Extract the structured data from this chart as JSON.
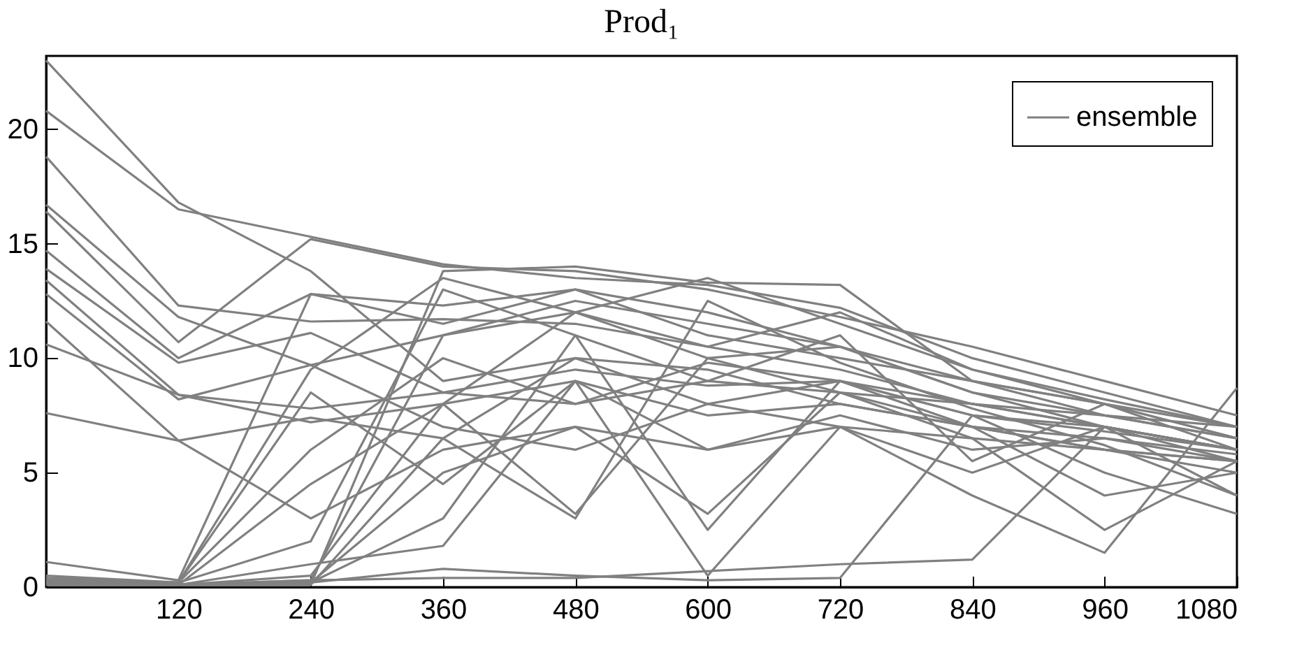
{
  "chart_data": {
    "type": "line",
    "title": "Prod₁",
    "x": [
      0,
      120,
      240,
      360,
      480,
      600,
      720,
      840,
      960,
      1080
    ],
    "xlim": [
      0,
      1080
    ],
    "xticks": [
      120,
      240,
      360,
      480,
      600,
      720,
      840,
      960,
      1080
    ],
    "ylim": [
      0,
      23.2
    ],
    "yticks": [
      0,
      5,
      10,
      15,
      20
    ],
    "grid": false,
    "legend": "top right",
    "line_style": "solid",
    "marker": "none",
    "series": [
      {
        "name": "ensemble",
        "color": "#808080",
        "values": [
          23.0,
          16.8,
          13.8,
          9,
          10,
          8,
          9,
          8,
          7,
          6
        ]
      },
      {
        "color": "#808080",
        "values": [
          20.8,
          16.5,
          15.3,
          14.1,
          13.5,
          13.2,
          12.2,
          10,
          8.5,
          7
        ]
      },
      {
        "color": "#808080",
        "values": [
          18.8,
          12.3,
          11.6,
          11.7,
          11.5,
          10.5,
          9.5,
          8,
          7.5,
          6.5
        ]
      },
      {
        "color": "#808080",
        "values": [
          16.7,
          11.8,
          9.7,
          11,
          12,
          10,
          10.5,
          8.5,
          7,
          6
        ]
      },
      {
        "color": "#808080",
        "values": [
          16.4,
          10.7,
          15.2,
          14,
          13.8,
          13,
          11.8,
          10.5,
          9,
          7.5
        ]
      },
      {
        "color": "#808080",
        "values": [
          14.7,
          10.0,
          12.8,
          12.3,
          13,
          11,
          10,
          9,
          7.5,
          7
        ]
      },
      {
        "color": "#808080",
        "values": [
          13.9,
          9.8,
          11.1,
          8.5,
          9.5,
          8.8,
          9,
          7.5,
          7,
          6
        ]
      },
      {
        "color": "#808080",
        "values": [
          13.4,
          8.4,
          7.2,
          8,
          9,
          7.5,
          8,
          7,
          6.5,
          5.5
        ]
      },
      {
        "color": "#808080",
        "values": [
          12.8,
          8.2,
          9.7,
          7,
          6,
          8,
          7,
          6.5,
          6,
          5
        ]
      },
      {
        "color": "#808080",
        "values": [
          11.6,
          6.4,
          3.0,
          6,
          7,
          6,
          7.5,
          6,
          6.5,
          5.8
        ]
      },
      {
        "color": "#808080",
        "values": [
          10.6,
          8.4,
          7.8,
          8.5,
          8,
          9,
          8.5,
          7,
          6,
          5.5
        ]
      },
      {
        "color": "#808080",
        "values": [
          7.6,
          6.4,
          7.4,
          6.5,
          10,
          9.5,
          8,
          7,
          6,
          5.5
        ]
      },
      {
        "color": "#808080",
        "values": [
          1.1,
          0.3,
          12.8,
          11.5,
          13,
          12,
          10.5,
          9,
          8,
          7
        ]
      },
      {
        "color": "#808080",
        "values": [
          0.5,
          0.2,
          9.5,
          13.5,
          12,
          13.5,
          11.5,
          9.5,
          8,
          6.5
        ]
      },
      {
        "color": "#808080",
        "values": [
          0.4,
          0.2,
          6.0,
          10,
          8,
          9.8,
          9,
          7.5,
          6.8,
          6
        ]
      },
      {
        "color": "#808080",
        "values": [
          0.3,
          0.1,
          4.5,
          8,
          3.2,
          10,
          8.5,
          8,
          7,
          6
        ]
      },
      {
        "color": "#808080",
        "values": [
          0.2,
          0.2,
          2.0,
          13,
          11,
          2.5,
          9,
          7,
          4,
          5
        ]
      },
      {
        "color": "#808080",
        "values": [
          0.3,
          0.2,
          8.5,
          4.5,
          9,
          6,
          7,
          5,
          7,
          4
        ]
      },
      {
        "color": "#808080",
        "values": [
          0.2,
          0.1,
          0.1,
          13.8,
          14.0,
          13.3,
          13.2,
          9,
          8,
          6
        ]
      },
      {
        "color": "#808080",
        "values": [
          0.3,
          0.1,
          0.3,
          11,
          12.5,
          11.5,
          10.5,
          8.5,
          7.5,
          6.5
        ]
      },
      {
        "color": "#808080",
        "values": [
          0.2,
          0.1,
          0.5,
          8,
          12,
          10.5,
          12,
          9.5,
          8.2,
          7
        ]
      },
      {
        "color": "#808080",
        "values": [
          0.1,
          0.1,
          0.2,
          5,
          7,
          3.2,
          8.5,
          6.5,
          2.5,
          5.5
        ]
      },
      {
        "color": "#808080",
        "values": [
          0.2,
          0.1,
          1.0,
          1.8,
          9,
          0.5,
          7,
          4,
          1.5,
          8.7
        ]
      },
      {
        "color": "#808080",
        "values": [
          0.2,
          0.1,
          0.3,
          0.4,
          0.4,
          0.7,
          1.0,
          1.2,
          7,
          5.5
        ]
      },
      {
        "color": "#808080",
        "values": [
          0.3,
          0.1,
          0.2,
          0.8,
          0.5,
          0.3,
          0.4,
          7.5,
          5,
          3.2
        ]
      },
      {
        "color": "#808080",
        "values": [
          0.1,
          0.1,
          0.1,
          6.5,
          3,
          12.5,
          9.8,
          7.8,
          6.2,
          4
        ]
      },
      {
        "color": "#808080",
        "values": [
          0.2,
          0.1,
          0.2,
          3,
          11,
          9,
          11,
          5.5,
          8,
          6.5
        ]
      }
    ]
  }
}
